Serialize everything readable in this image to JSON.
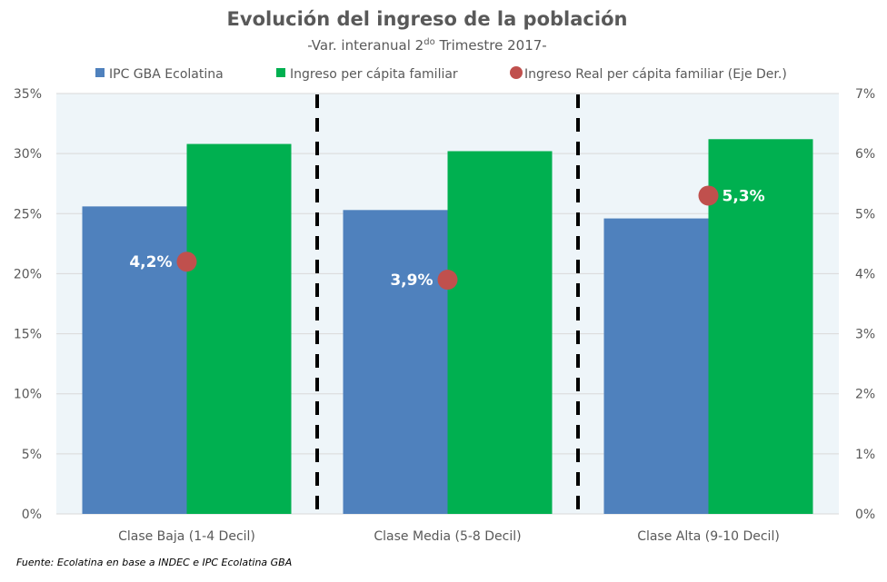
{
  "chart_data": {
    "type": "bar",
    "title": "Evolución del ingreso de la población",
    "subtitle_prefix": "-Var. interanual 2",
    "subtitle_sup": "do",
    "subtitle_suffix": " Trimestre 2017-",
    "categories": [
      "Clase Baja (1-4 Decil)",
      "Clase Media (5-8 Decil)",
      "Clase Alta (9-10 Decil)"
    ],
    "series": [
      {
        "name": "IPC GBA Ecolatina",
        "type": "bar",
        "axis": "left",
        "color": "#4F81BD",
        "values": [
          25.6,
          25.3,
          24.6
        ]
      },
      {
        "name": "Ingreso per cápita familiar",
        "type": "bar",
        "axis": "left",
        "color": "#00B050",
        "values": [
          30.8,
          30.2,
          31.2
        ]
      },
      {
        "name": "Ingreso Real per cápita familiar (Eje Der.)",
        "type": "scatter",
        "axis": "right",
        "color": "#C0504D",
        "values": [
          4.2,
          3.9,
          5.3
        ],
        "labels": [
          "4,2%",
          "3,9%",
          "5,3%"
        ],
        "label_side": [
          "left",
          "left",
          "right"
        ]
      }
    ],
    "y_left": {
      "min": 0,
      "max": 35,
      "step": 5,
      "ticks": [
        "0%",
        "5%",
        "10%",
        "15%",
        "20%",
        "25%",
        "30%",
        "35%"
      ]
    },
    "y_right": {
      "min": 0,
      "max": 7,
      "step": 1,
      "ticks": [
        "0%",
        "1%",
        "2%",
        "3%",
        "4%",
        "5%",
        "6%",
        "7%"
      ]
    },
    "grid": true,
    "legend": "top",
    "separators": "dashed vertical lines between categories",
    "plot_background": "#EEF5F9",
    "source": "Fuente: Ecolatina en base a INDEC e IPC Ecolatina GBA"
  }
}
